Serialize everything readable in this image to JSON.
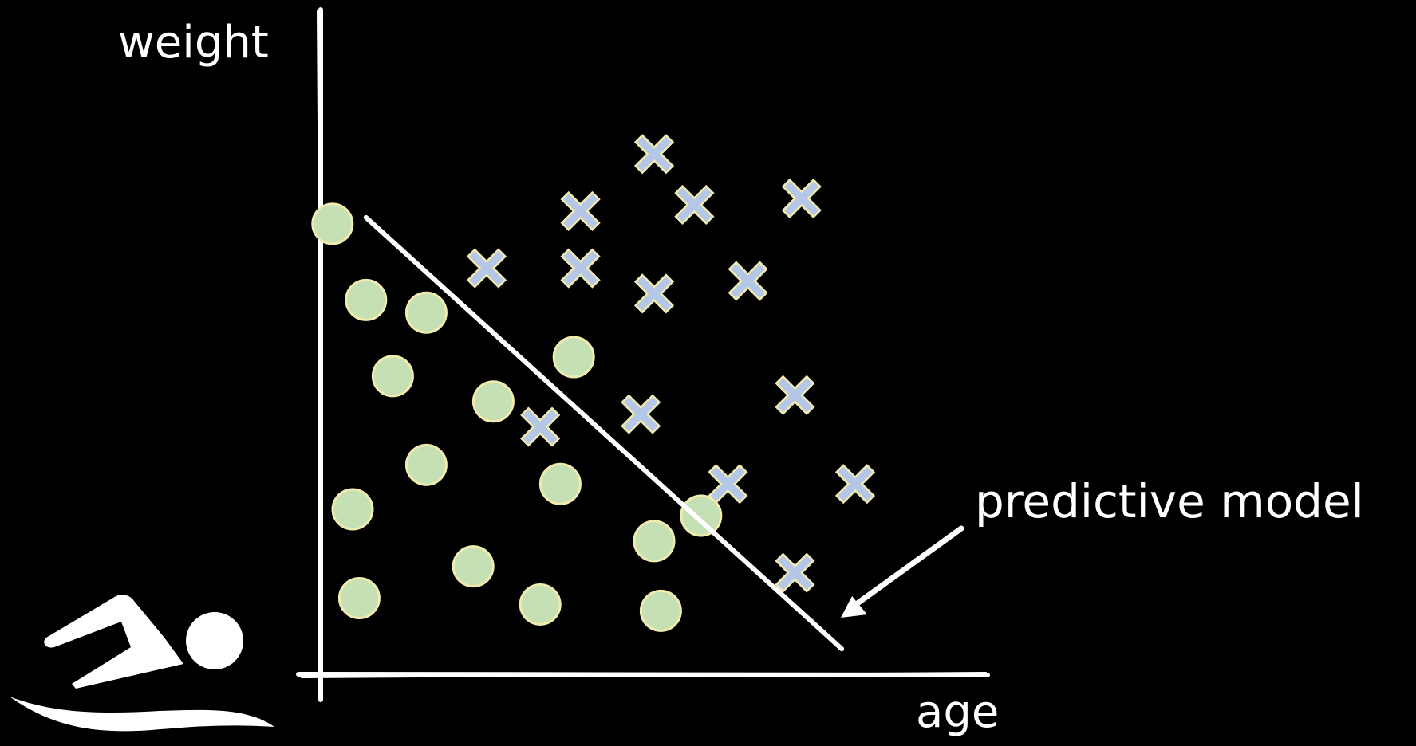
{
  "labels": {
    "y_axis": "weight",
    "x_axis": "age",
    "annotation": "predictive model"
  },
  "icons": {
    "swimmer": "swimmer-icon"
  },
  "colors": {
    "background": "#000000",
    "foreground": "#ffffff",
    "circle_fill": "#c5e0b4",
    "circle_stroke": "#f2ebb0",
    "cross_fill": "#b4c7e7",
    "cross_stroke": "#f2ebb0"
  },
  "chart_data": {
    "type": "scatter",
    "xlabel": "age",
    "ylabel": "weight",
    "series": [
      {
        "marker": "circle",
        "points": [
          [
            2,
            71
          ],
          [
            7,
            59
          ],
          [
            16,
            57
          ],
          [
            11,
            47
          ],
          [
            26,
            43
          ],
          [
            38,
            50
          ],
          [
            16,
            33
          ],
          [
            5,
            26
          ],
          [
            36,
            30
          ],
          [
            50,
            21
          ],
          [
            23,
            17
          ],
          [
            57,
            25
          ],
          [
            6,
            12
          ],
          [
            33,
            11
          ],
          [
            51,
            10
          ]
        ]
      },
      {
        "marker": "cross",
        "points": [
          [
            50,
            82
          ],
          [
            39,
            73
          ],
          [
            56,
            74
          ],
          [
            72,
            75
          ],
          [
            25,
            64
          ],
          [
            39,
            64
          ],
          [
            50,
            60
          ],
          [
            64,
            62
          ],
          [
            48,
            41
          ],
          [
            71,
            44
          ],
          [
            33,
            39
          ],
          [
            61,
            30
          ],
          [
            80,
            30
          ],
          [
            71,
            16
          ]
        ]
      }
    ],
    "decision_line": {
      "from": [
        7,
        72
      ],
      "to": [
        78,
        4
      ]
    }
  }
}
